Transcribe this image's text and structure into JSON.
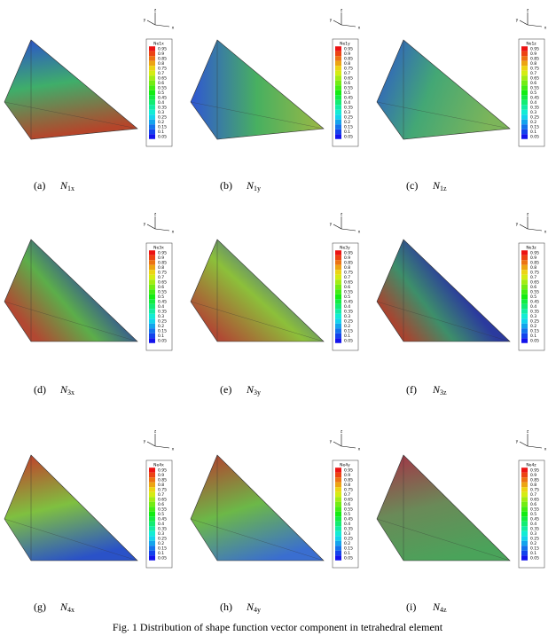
{
  "panels": [
    {
      "label": "(a)",
      "symbol": "N",
      "subscript": "1x",
      "legend_title": "Ne1x"
    },
    {
      "label": "(b)",
      "symbol": "N",
      "subscript": "1y",
      "legend_title": "Ne1y"
    },
    {
      "label": "(c)",
      "symbol": "N",
      "subscript": "1z",
      "legend_title": "Ne1z"
    },
    {
      "label": "(d)",
      "symbol": "N",
      "subscript": "3x",
      "legend_title": "Ne3x"
    },
    {
      "label": "(e)",
      "symbol": "N",
      "subscript": "3y",
      "legend_title": "Ne3y"
    },
    {
      "label": "(f)",
      "symbol": "N",
      "subscript": "3z",
      "legend_title": "Ne3z"
    },
    {
      "label": "(g)",
      "symbol": "N",
      "subscript": "4x",
      "legend_title": "Ne4x"
    },
    {
      "label": "(h)",
      "symbol": "N",
      "subscript": "4y",
      "legend_title": "Ne4y"
    },
    {
      "label": "(i)",
      "symbol": "N",
      "subscript": "4z",
      "legend_title": "Ne4z"
    }
  ],
  "legend_levels": [
    0.95,
    0.9,
    0.85,
    0.8,
    0.75,
    0.7,
    0.65,
    0.6,
    0.55,
    0.5,
    0.45,
    0.4,
    0.35,
    0.3,
    0.25,
    0.2,
    0.15,
    0.1,
    0.05
  ],
  "axis_labels": {
    "z": "z",
    "y": "y",
    "x": "x"
  },
  "caption": "Fig. 1 Distribution of shape function vector component in tetrahedral element"
}
